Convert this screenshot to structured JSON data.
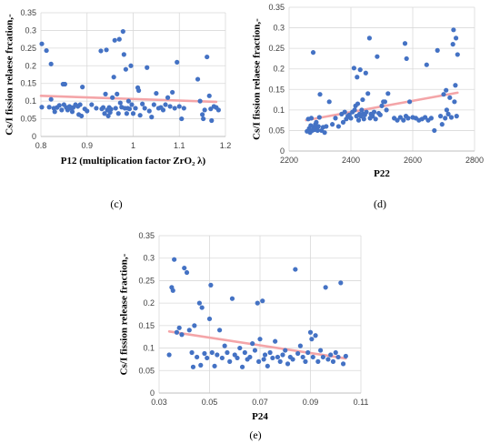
{
  "chart_data": [
    {
      "type": "scatter",
      "caption": "(c)",
      "xlabel": "P12 (multiplication factor ZrO₂ λ)",
      "ylabel": "Cs/I fission relaese frcation,-",
      "xlim": [
        0.8,
        1.2
      ],
      "ylim": [
        0,
        0.35
      ],
      "xticks": [
        "0.8",
        "0.9",
        "1",
        "1.1",
        "1.2"
      ],
      "yticks": [
        "0",
        "0.05",
        "0.1",
        "0.15",
        "0.2",
        "0.25",
        "0.3",
        "0.35"
      ],
      "trend": {
        "x": [
          0.8,
          1.18
        ],
        "y": [
          0.115,
          0.098
        ]
      },
      "points": [
        [
          0.802,
          0.262
        ],
        [
          0.802,
          0.083
        ],
        [
          0.812,
          0.243
        ],
        [
          0.818,
          0.083
        ],
        [
          0.822,
          0.205
        ],
        [
          0.822,
          0.105
        ],
        [
          0.828,
          0.08
        ],
        [
          0.83,
          0.07
        ],
        [
          0.835,
          0.082
        ],
        [
          0.84,
          0.088
        ],
        [
          0.845,
          0.075
        ],
        [
          0.848,
          0.148
        ],
        [
          0.85,
          0.09
        ],
        [
          0.852,
          0.148
        ],
        [
          0.855,
          0.082
        ],
        [
          0.858,
          0.075
        ],
        [
          0.862,
          0.085
        ],
        [
          0.865,
          0.08
        ],
        [
          0.868,
          0.07
        ],
        [
          0.87,
          0.082
        ],
        [
          0.875,
          0.09
        ],
        [
          0.88,
          0.085
        ],
        [
          0.882,
          0.062
        ],
        [
          0.885,
          0.09
        ],
        [
          0.888,
          0.058
        ],
        [
          0.89,
          0.14
        ],
        [
          0.895,
          0.078
        ],
        [
          0.9,
          0.072
        ],
        [
          0.91,
          0.09
        ],
        [
          0.92,
          0.08
        ],
        [
          0.93,
          0.242
        ],
        [
          0.932,
          0.078
        ],
        [
          0.935,
          0.082
        ],
        [
          0.938,
          0.065
        ],
        [
          0.94,
          0.12
        ],
        [
          0.942,
          0.245
        ],
        [
          0.944,
          0.075
        ],
        [
          0.946,
          0.058
        ],
        [
          0.948,
          0.082
        ],
        [
          0.95,
          0.068
        ],
        [
          0.952,
          0.077
        ],
        [
          0.955,
          0.11
        ],
        [
          0.958,
          0.168
        ],
        [
          0.96,
          0.272
        ],
        [
          0.962,
          0.08
        ],
        [
          0.965,
          0.12
        ],
        [
          0.968,
          0.065
        ],
        [
          0.97,
          0.275
        ],
        [
          0.972,
          0.095
        ],
        [
          0.975,
          0.083
        ],
        [
          0.978,
          0.297
        ],
        [
          0.98,
          0.232
        ],
        [
          0.982,
          0.08
        ],
        [
          0.984,
          0.19
        ],
        [
          0.986,
          0.065
        ],
        [
          0.988,
          0.08
        ],
        [
          0.99,
          0.1
        ],
        [
          0.992,
          0.078
        ],
        [
          0.995,
          0.2
        ],
        [
          0.997,
          0.09
        ],
        [
          1.0,
          0.065
        ],
        [
          1.005,
          0.08
        ],
        [
          1.01,
          0.138
        ],
        [
          1.012,
          0.13
        ],
        [
          1.015,
          0.06
        ],
        [
          1.02,
          0.092
        ],
        [
          1.025,
          0.08
        ],
        [
          1.03,
          0.195
        ],
        [
          1.035,
          0.072
        ],
        [
          1.04,
          0.055
        ],
        [
          1.045,
          0.09
        ],
        [
          1.05,
          0.122
        ],
        [
          1.055,
          0.08
        ],
        [
          1.06,
          0.082
        ],
        [
          1.065,
          0.075
        ],
        [
          1.07,
          0.09
        ],
        [
          1.075,
          0.11
        ],
        [
          1.08,
          0.085
        ],
        [
          1.085,
          0.125
        ],
        [
          1.09,
          0.08
        ],
        [
          1.095,
          0.21
        ],
        [
          1.1,
          0.085
        ],
        [
          1.105,
          0.05
        ],
        [
          1.11,
          0.08
        ],
        [
          1.14,
          0.162
        ],
        [
          1.145,
          0.1
        ],
        [
          1.15,
          0.062
        ],
        [
          1.152,
          0.05
        ],
        [
          1.155,
          0.075
        ],
        [
          1.16,
          0.225
        ],
        [
          1.165,
          0.115
        ],
        [
          1.168,
          0.078
        ],
        [
          1.17,
          0.045
        ],
        [
          1.175,
          0.085
        ],
        [
          1.18,
          0.082
        ],
        [
          1.185,
          0.075
        ]
      ]
    },
    {
      "type": "scatter",
      "caption": "(d)",
      "xlabel": "P22",
      "ylabel": "Cs/I fission relaese fraction,-",
      "xlim": [
        2200,
        2800
      ],
      "ylim": [
        0,
        0.35
      ],
      "xticks": [
        "2200",
        "2400",
        "2600",
        "2800"
      ],
      "yticks": [
        "0",
        "0.05",
        "0.1",
        "0.15",
        "0.2",
        "0.25",
        "0.3",
        "0.35"
      ],
      "trend": {
        "x": [
          2255,
          2745
        ],
        "y": [
          0.075,
          0.142
        ]
      },
      "points": [
        [
          2258,
          0.048
        ],
        [
          2262,
          0.078
        ],
        [
          2265,
          0.055
        ],
        [
          2268,
          0.045
        ],
        [
          2270,
          0.062
        ],
        [
          2272,
          0.08
        ],
        [
          2275,
          0.05
        ],
        [
          2278,
          0.24
        ],
        [
          2280,
          0.058
        ],
        [
          2282,
          0.052
        ],
        [
          2285,
          0.065
        ],
        [
          2288,
          0.07
        ],
        [
          2290,
          0.055
        ],
        [
          2292,
          0.05
        ],
        [
          2295,
          0.06
        ],
        [
          2298,
          0.082
        ],
        [
          2300,
          0.138
        ],
        [
          2305,
          0.05
        ],
        [
          2310,
          0.058
        ],
        [
          2315,
          0.045
        ],
        [
          2320,
          0.06
        ],
        [
          2330,
          0.12
        ],
        [
          2340,
          0.065
        ],
        [
          2350,
          0.08
        ],
        [
          2360,
          0.06
        ],
        [
          2370,
          0.09
        ],
        [
          2375,
          0.07
        ],
        [
          2380,
          0.095
        ],
        [
          2385,
          0.078
        ],
        [
          2390,
          0.085
        ],
        [
          2395,
          0.088
        ],
        [
          2400,
          0.08
        ],
        [
          2405,
          0.095
        ],
        [
          2410,
          0.202
        ],
        [
          2412,
          0.1
        ],
        [
          2415,
          0.11
        ],
        [
          2418,
          0.085
        ],
        [
          2420,
          0.18
        ],
        [
          2422,
          0.115
        ],
        [
          2425,
          0.075
        ],
        [
          2428,
          0.09
        ],
        [
          2430,
          0.198
        ],
        [
          2432,
          0.085
        ],
        [
          2435,
          0.1
        ],
        [
          2438,
          0.125
        ],
        [
          2440,
          0.09
        ],
        [
          2442,
          0.078
        ],
        [
          2445,
          0.088
        ],
        [
          2448,
          0.19
        ],
        [
          2450,
          0.095
        ],
        [
          2455,
          0.14
        ],
        [
          2460,
          0.275
        ],
        [
          2462,
          0.08
        ],
        [
          2465,
          0.09
        ],
        [
          2470,
          0.085
        ],
        [
          2475,
          0.095
        ],
        [
          2480,
          0.078
        ],
        [
          2485,
          0.23
        ],
        [
          2490,
          0.092
        ],
        [
          2495,
          0.088
        ],
        [
          2500,
          0.11
        ],
        [
          2505,
          0.12
        ],
        [
          2510,
          0.12
        ],
        [
          2515,
          0.1
        ],
        [
          2520,
          0.14
        ],
        [
          2540,
          0.08
        ],
        [
          2550,
          0.075
        ],
        [
          2560,
          0.082
        ],
        [
          2570,
          0.075
        ],
        [
          2575,
          0.262
        ],
        [
          2578,
          0.085
        ],
        [
          2580,
          0.225
        ],
        [
          2585,
          0.08
        ],
        [
          2590,
          0.12
        ],
        [
          2600,
          0.082
        ],
        [
          2610,
          0.08
        ],
        [
          2620,
          0.075
        ],
        [
          2630,
          0.078
        ],
        [
          2640,
          0.082
        ],
        [
          2645,
          0.21
        ],
        [
          2650,
          0.075
        ],
        [
          2660,
          0.08
        ],
        [
          2670,
          0.05
        ],
        [
          2680,
          0.245
        ],
        [
          2690,
          0.085
        ],
        [
          2695,
          0.065
        ],
        [
          2700,
          0.138
        ],
        [
          2705,
          0.08
        ],
        [
          2708,
          0.148
        ],
        [
          2710,
          0.1
        ],
        [
          2715,
          0.09
        ],
        [
          2720,
          0.13
        ],
        [
          2725,
          0.082
        ],
        [
          2730,
          0.26
        ],
        [
          2732,
          0.295
        ],
        [
          2735,
          0.12
        ],
        [
          2738,
          0.16
        ],
        [
          2740,
          0.275
        ],
        [
          2742,
          0.085
        ],
        [
          2745,
          0.235
        ]
      ]
    },
    {
      "type": "scatter",
      "caption": "(e)",
      "xlabel": "P24",
      "ylabel": "Cs/I fission release fraction,-",
      "xlim": [
        0.03,
        0.11
      ],
      "ylim": [
        0,
        0.35
      ],
      "xticks": [
        "0.03",
        "0.05",
        "0.07",
        "0.09",
        "0.11"
      ],
      "yticks": [
        "0",
        "0.05",
        "0.1",
        "0.15",
        "0.2",
        "0.25",
        "0.3",
        "0.35"
      ],
      "trend": {
        "x": [
          0.034,
          0.104
        ],
        "y": [
          0.137,
          0.077
        ]
      },
      "points": [
        [
          0.034,
          0.085
        ],
        [
          0.035,
          0.235
        ],
        [
          0.0355,
          0.228
        ],
        [
          0.036,
          0.297
        ],
        [
          0.037,
          0.135
        ],
        [
          0.038,
          0.145
        ],
        [
          0.039,
          0.13
        ],
        [
          0.04,
          0.278
        ],
        [
          0.041,
          0.268
        ],
        [
          0.042,
          0.14
        ],
        [
          0.043,
          0.09
        ],
        [
          0.0435,
          0.058
        ],
        [
          0.044,
          0.15
        ],
        [
          0.045,
          0.08
        ],
        [
          0.046,
          0.2
        ],
        [
          0.0465,
          0.062
        ],
        [
          0.047,
          0.19
        ],
        [
          0.048,
          0.088
        ],
        [
          0.049,
          0.078
        ],
        [
          0.05,
          0.165
        ],
        [
          0.0505,
          0.24
        ],
        [
          0.051,
          0.09
        ],
        [
          0.052,
          0.06
        ],
        [
          0.053,
          0.085
        ],
        [
          0.054,
          0.14
        ],
        [
          0.055,
          0.078
        ],
        [
          0.056,
          0.105
        ],
        [
          0.057,
          0.09
        ],
        [
          0.058,
          0.07
        ],
        [
          0.059,
          0.21
        ],
        [
          0.06,
          0.085
        ],
        [
          0.061,
          0.078
        ],
        [
          0.062,
          0.1
        ],
        [
          0.063,
          0.058
        ],
        [
          0.064,
          0.09
        ],
        [
          0.065,
          0.075
        ],
        [
          0.066,
          0.08
        ],
        [
          0.067,
          0.11
        ],
        [
          0.068,
          0.095
        ],
        [
          0.069,
          0.2
        ],
        [
          0.0695,
          0.07
        ],
        [
          0.07,
          0.12
        ],
        [
          0.071,
          0.205
        ],
        [
          0.0715,
          0.075
        ],
        [
          0.072,
          0.085
        ],
        [
          0.073,
          0.06
        ],
        [
          0.074,
          0.09
        ],
        [
          0.075,
          0.078
        ],
        [
          0.076,
          0.115
        ],
        [
          0.077,
          0.08
        ],
        [
          0.078,
          0.07
        ],
        [
          0.079,
          0.085
        ],
        [
          0.08,
          0.095
        ],
        [
          0.081,
          0.065
        ],
        [
          0.082,
          0.08
        ],
        [
          0.083,
          0.075
        ],
        [
          0.084,
          0.275
        ],
        [
          0.085,
          0.088
        ],
        [
          0.086,
          0.105
        ],
        [
          0.087,
          0.08
        ],
        [
          0.088,
          0.07
        ],
        [
          0.089,
          0.09
        ],
        [
          0.09,
          0.135
        ],
        [
          0.0905,
          0.12
        ],
        [
          0.091,
          0.08
        ],
        [
          0.092,
          0.128
        ],
        [
          0.093,
          0.07
        ],
        [
          0.094,
          0.095
        ],
        [
          0.095,
          0.08
        ],
        [
          0.096,
          0.235
        ],
        [
          0.097,
          0.075
        ],
        [
          0.098,
          0.085
        ],
        [
          0.099,
          0.07
        ],
        [
          0.1,
          0.09
        ],
        [
          0.101,
          0.08
        ],
        [
          0.102,
          0.245
        ],
        [
          0.103,
          0.065
        ],
        [
          0.104,
          0.082
        ]
      ]
    }
  ],
  "colors": {
    "point": "#4472c4",
    "trend": "#f4a5a8",
    "grid": "#d9d9d9",
    "axis": "#bfbfbf"
  }
}
